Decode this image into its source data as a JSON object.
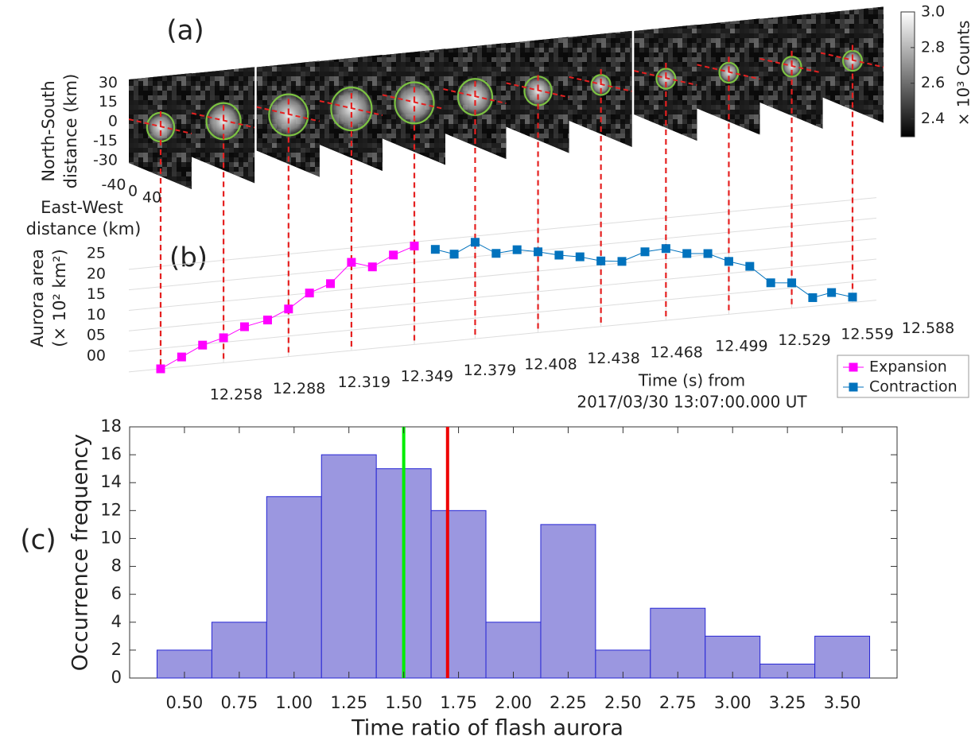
{
  "chart_data": [
    {
      "type": "image",
      "panel_label": "(a)",
      "y_label": [
        "North-South",
        "distance (km)"
      ],
      "ylim": [
        -40,
        40
      ],
      "yticks": [
        30,
        15,
        0,
        -15,
        -30
      ],
      "x_label": [
        "East-West",
        "distance (km)"
      ],
      "xlim": [
        -40,
        40
      ],
      "xticks": [
        -40,
        0,
        40
      ],
      "colorbar": {
        "label": "× 10³ Counts",
        "lim": [
          2.3,
          3.0
        ],
        "ticks": [
          2.4,
          2.6,
          2.8,
          {
            "value": 3.0,
            "label": "3.0"
          }
        ]
      }
    },
    {
      "type": "line",
      "panel_label": "(b)",
      "y_label": [
        "Aurora area",
        "(× 10² km²)"
      ],
      "x_label": [
        "Time (s) from",
        "2017/03/30 13:07:00.000 UT"
      ],
      "x": [
        12.258,
        12.268,
        12.278,
        12.288,
        12.298,
        12.309,
        12.319,
        12.329,
        12.339,
        12.349,
        12.359,
        12.369,
        12.379,
        12.389,
        12.398,
        12.408,
        12.418,
        12.428,
        12.438,
        12.448,
        12.458,
        12.468,
        12.478,
        12.489,
        12.499,
        12.509,
        12.519,
        12.529,
        12.539,
        12.549,
        12.559,
        12.569,
        12.578,
        12.588
      ],
      "series": [
        {
          "name": "Expansion",
          "color": "#ff00ff",
          "values": [
            0,
            2.4,
            4.8,
            6.1,
            8.3,
            9.4,
            11.6,
            15.0,
            16.8,
            21.5,
            19.9,
            22.3,
            24.0,
            null,
            null,
            null,
            null,
            null,
            null,
            null,
            null,
            null,
            null,
            null,
            null,
            null,
            null,
            null,
            null,
            null,
            null,
            null,
            null,
            null
          ]
        },
        {
          "name": "Contraction",
          "color": "#0072bd",
          "values": [
            null,
            null,
            null,
            null,
            null,
            null,
            null,
            null,
            null,
            null,
            null,
            null,
            null,
            22.7,
            21.1,
            23.5,
            20.3,
            20.7,
            19.7,
            18.4,
            17.5,
            16.0,
            15.4,
            17.2,
            17.5,
            15.8,
            15.3,
            12.9,
            11.2,
            6.7,
            6.2,
            2.1,
            2.9,
            1.3
          ]
        }
      ],
      "xlim": [
        12.258,
        12.588
      ],
      "xticks": [
        {
          "value": 12.258,
          "label": "12.258"
        },
        {
          "value": 12.288,
          "label": "12.288"
        },
        {
          "value": 12.319,
          "label": "12.319"
        },
        {
          "value": 12.349,
          "label": "12.349"
        },
        {
          "value": 12.379,
          "label": "12.379"
        },
        {
          "value": 12.408,
          "label": "12.408"
        },
        {
          "value": 12.438,
          "label": "12.438"
        },
        {
          "value": 12.468,
          "label": "12.468"
        },
        {
          "value": 12.499,
          "label": "12.499"
        },
        {
          "value": 12.529,
          "label": "12.529"
        },
        {
          "value": 12.559,
          "label": "12.559"
        },
        {
          "value": 12.588,
          "label": "12.588"
        }
      ],
      "ylim": [
        0,
        25
      ],
      "yticks": [
        {
          "value": 0,
          "label": "00"
        },
        {
          "value": 5,
          "label": "05"
        },
        10,
        15,
        20,
        25
      ],
      "grid": true,
      "legend": "lower right"
    },
    {
      "type": "histogram",
      "panel_label": "(c)",
      "x_label": "Time ratio of flash aurora",
      "y_label": "Occurrence frequency",
      "bins": [
        0.375,
        0.625,
        0.875,
        1.125,
        1.375,
        1.625,
        1.875,
        2.125,
        2.375,
        2.625,
        2.875,
        3.125,
        3.375,
        3.625
      ],
      "values": [
        2,
        4,
        13,
        16,
        15,
        12,
        4,
        11,
        2,
        5,
        3,
        1,
        3
      ],
      "color": "#9b97e0",
      "edge_color": "#2626d4",
      "xlim": [
        0.25,
        3.75
      ],
      "xticks": [
        {
          "value": 0.5,
          "label": "0.50"
        },
        {
          "value": 0.75,
          "label": "0.75"
        },
        {
          "value": 1.0,
          "label": "1.00"
        },
        {
          "value": 1.25,
          "label": "1.25"
        },
        {
          "value": 1.5,
          "label": "1.50"
        },
        {
          "value": 1.75,
          "label": "1.75"
        },
        {
          "value": 2.0,
          "label": "2.00"
        },
        {
          "value": 2.25,
          "label": "2.25"
        },
        {
          "value": 2.5,
          "label": "2.50"
        },
        {
          "value": 2.75,
          "label": "2.75"
        },
        {
          "value": 3.0,
          "label": "3.00"
        },
        {
          "value": 3.25,
          "label": "3.25"
        },
        {
          "value": 3.5,
          "label": "3.50"
        }
      ],
      "ylim": [
        0,
        18
      ],
      "yticks": [
        0,
        2,
        4,
        6,
        8,
        10,
        12,
        14,
        16,
        18
      ],
      "vlines": [
        {
          "value": 1.5,
          "color": "#00ee00"
        },
        {
          "value": 1.7,
          "color": "#ee0000"
        }
      ]
    }
  ]
}
